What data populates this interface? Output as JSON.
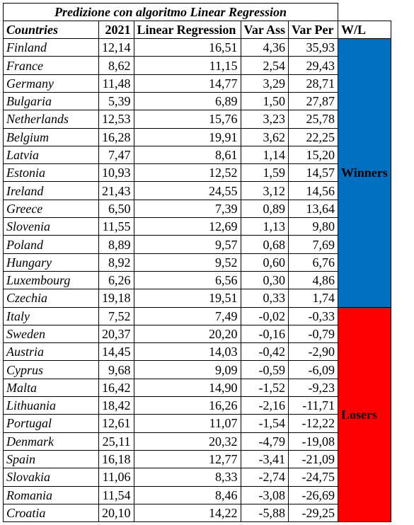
{
  "title": "Predizione con algoritmo Linear Regression",
  "headers": {
    "countries": "Countries",
    "y2021": "2021",
    "linear_regression": "Linear Regression",
    "var_ass": "Var Ass",
    "var_per": "Var Per",
    "wl": "W/L"
  },
  "groups": {
    "winners": {
      "label": "Winners",
      "color": "#0070C0"
    },
    "losers": {
      "label": "Losers",
      "color": "#FF0000"
    }
  },
  "rows": [
    {
      "country": "Finland",
      "y2021": "12,14",
      "lr": "16,51",
      "va": "4,36",
      "vp": "35,93",
      "group": "winners"
    },
    {
      "country": "France",
      "y2021": "8,62",
      "lr": "11,15",
      "va": "2,54",
      "vp": "29,43",
      "group": "winners"
    },
    {
      "country": "Germany",
      "y2021": "11,48",
      "lr": "14,77",
      "va": "3,29",
      "vp": "28,71",
      "group": "winners"
    },
    {
      "country": "Bulgaria",
      "y2021": "5,39",
      "lr": "6,89",
      "va": "1,50",
      "vp": "27,87",
      "group": "winners"
    },
    {
      "country": "Netherlands",
      "y2021": "12,53",
      "lr": "15,76",
      "va": "3,23",
      "vp": "25,78",
      "group": "winners"
    },
    {
      "country": "Belgium",
      "y2021": "16,28",
      "lr": "19,91",
      "va": "3,62",
      "vp": "22,25",
      "group": "winners"
    },
    {
      "country": "Latvia",
      "y2021": "7,47",
      "lr": "8,61",
      "va": "1,14",
      "vp": "15,20",
      "group": "winners"
    },
    {
      "country": "Estonia",
      "y2021": "10,93",
      "lr": "12,52",
      "va": "1,59",
      "vp": "14,57",
      "group": "winners"
    },
    {
      "country": "Ireland",
      "y2021": "21,43",
      "lr": "24,55",
      "va": "3,12",
      "vp": "14,56",
      "group": "winners"
    },
    {
      "country": "Greece",
      "y2021": "6,50",
      "lr": "7,39",
      "va": "0,89",
      "vp": "13,64",
      "group": "winners"
    },
    {
      "country": "Slovenia",
      "y2021": "11,55",
      "lr": "12,69",
      "va": "1,13",
      "vp": "9,80",
      "group": "winners"
    },
    {
      "country": "Poland",
      "y2021": "8,89",
      "lr": "9,57",
      "va": "0,68",
      "vp": "7,69",
      "group": "winners"
    },
    {
      "country": "Hungary",
      "y2021": "8,92",
      "lr": "9,52",
      "va": "0,60",
      "vp": "6,76",
      "group": "winners"
    },
    {
      "country": "Luxembourg",
      "y2021": "6,26",
      "lr": "6,56",
      "va": "0,30",
      "vp": "4,86",
      "group": "winners"
    },
    {
      "country": "Czechia",
      "y2021": "19,18",
      "lr": "19,51",
      "va": "0,33",
      "vp": "1,74",
      "group": "winners"
    },
    {
      "country": "Italy",
      "y2021": "7,52",
      "lr": "7,49",
      "va": "-0,02",
      "vp": "-0,33",
      "group": "losers"
    },
    {
      "country": "Sweden",
      "y2021": "20,37",
      "lr": "20,20",
      "va": "-0,16",
      "vp": "-0,79",
      "group": "losers"
    },
    {
      "country": "Austria",
      "y2021": "14,45",
      "lr": "14,03",
      "va": "-0,42",
      "vp": "-2,90",
      "group": "losers"
    },
    {
      "country": "Cyprus",
      "y2021": "9,68",
      "lr": "9,09",
      "va": "-0,59",
      "vp": "-6,09",
      "group": "losers"
    },
    {
      "country": "Malta",
      "y2021": "16,42",
      "lr": "14,90",
      "va": "-1,52",
      "vp": "-9,23",
      "group": "losers"
    },
    {
      "country": "Lithuania",
      "y2021": "18,42",
      "lr": "16,26",
      "va": "-2,16",
      "vp": "-11,71",
      "group": "losers"
    },
    {
      "country": "Portugal",
      "y2021": "12,61",
      "lr": "11,07",
      "va": "-1,54",
      "vp": "-12,22",
      "group": "losers"
    },
    {
      "country": "Denmark",
      "y2021": "25,11",
      "lr": "20,32",
      "va": "-4,79",
      "vp": "-19,08",
      "group": "losers"
    },
    {
      "country": "Spain",
      "y2021": "16,18",
      "lr": "12,77",
      "va": "-3,41",
      "vp": "-21,09",
      "group": "losers"
    },
    {
      "country": "Slovakia",
      "y2021": "11,06",
      "lr": "8,33",
      "va": "-2,74",
      "vp": "-24,75",
      "group": "losers"
    },
    {
      "country": "Romania",
      "y2021": "11,54",
      "lr": "8,46",
      "va": "-3,08",
      "vp": "-26,69",
      "group": "losers"
    },
    {
      "country": "Croatia",
      "y2021": "20,10",
      "lr": "14,22",
      "va": "-5,88",
      "vp": "-29,25",
      "group": "losers"
    }
  ]
}
